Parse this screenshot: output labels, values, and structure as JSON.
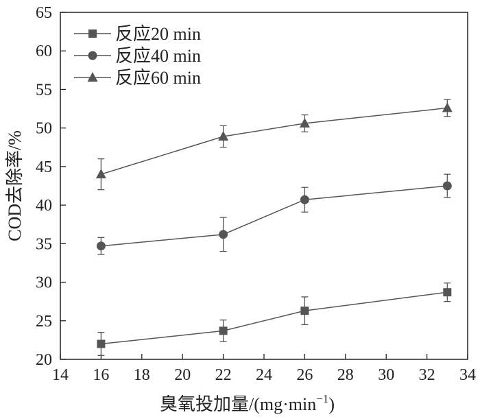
{
  "chart_data": {
    "type": "line",
    "title": "",
    "xlabel": "臭氧投加量/(mg·min",
    "xlabel_sup": "−1",
    "xlabel_suffix": ")",
    "ylabel": "COD去除率/%",
    "xlim": [
      14,
      34
    ],
    "ylim": [
      20,
      65
    ],
    "x_ticks": [
      14,
      16,
      18,
      20,
      22,
      24,
      26,
      28,
      30,
      32,
      34
    ],
    "y_ticks": [
      20,
      25,
      30,
      35,
      40,
      45,
      50,
      55,
      60,
      65
    ],
    "x": [
      16,
      22,
      26,
      33
    ],
    "grid": false,
    "legend_position": "top-left",
    "series": [
      {
        "name": "反应20 min",
        "marker": "square",
        "values": [
          22.0,
          23.7,
          26.3,
          28.7
        ],
        "errors": [
          1.5,
          1.4,
          1.8,
          1.2
        ]
      },
      {
        "name": "反应40 min",
        "marker": "circle",
        "values": [
          34.7,
          36.2,
          40.7,
          42.5
        ],
        "errors": [
          1.1,
          2.2,
          1.6,
          1.5
        ]
      },
      {
        "name": "反应60 min",
        "marker": "triangle",
        "values": [
          44.0,
          48.9,
          50.6,
          52.6
        ],
        "errors": [
          2.0,
          1.4,
          1.1,
          1.1
        ]
      }
    ],
    "colors": {
      "line": "#555555",
      "marker": "#555555",
      "axis": "#222222"
    }
  }
}
